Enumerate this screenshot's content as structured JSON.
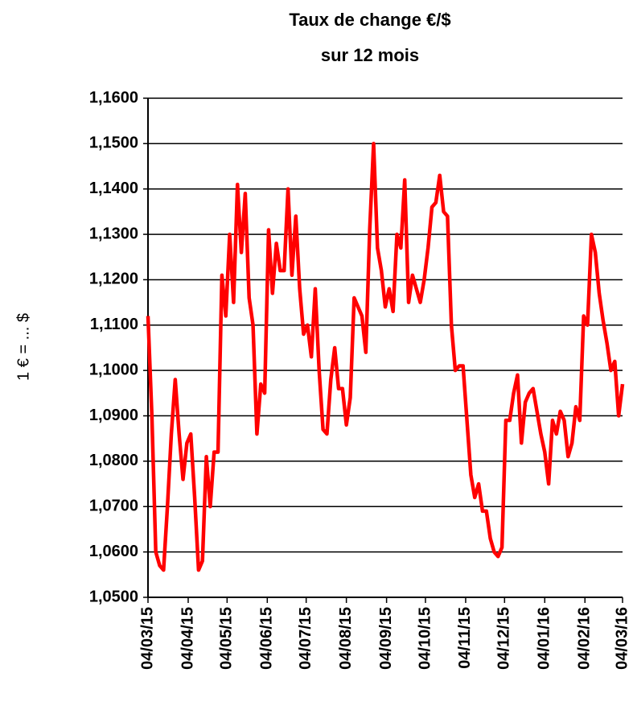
{
  "chart_data": {
    "type": "line",
    "title": "Taux de change €/$",
    "subtitle": "sur 12 mois",
    "y_label": "1 € = ... $",
    "x": [
      "2015-03-04",
      "2015-03-07",
      "2015-03-10",
      "2015-03-13",
      "2015-03-16",
      "2015-03-19",
      "2015-03-22",
      "2015-03-25",
      "2015-03-28",
      "2015-03-31",
      "2015-04-03",
      "2015-04-06",
      "2015-04-09",
      "2015-04-12",
      "2015-04-15",
      "2015-04-18",
      "2015-04-21",
      "2015-04-24",
      "2015-04-27",
      "2015-04-30",
      "2015-05-03",
      "2015-05-06",
      "2015-05-09",
      "2015-05-12",
      "2015-05-15",
      "2015-05-18",
      "2015-05-21",
      "2015-05-24",
      "2015-05-27",
      "2015-05-30",
      "2015-06-02",
      "2015-06-05",
      "2015-06-08",
      "2015-06-11",
      "2015-06-14",
      "2015-06-17",
      "2015-06-20",
      "2015-06-23",
      "2015-06-26",
      "2015-06-29",
      "2015-07-02",
      "2015-07-05",
      "2015-07-08",
      "2015-07-11",
      "2015-07-14",
      "2015-07-17",
      "2015-07-20",
      "2015-07-23",
      "2015-07-26",
      "2015-07-29",
      "2015-08-01",
      "2015-08-04",
      "2015-08-07",
      "2015-08-10",
      "2015-08-13",
      "2015-08-16",
      "2015-08-19",
      "2015-08-22",
      "2015-08-25",
      "2015-08-28",
      "2015-08-31",
      "2015-09-03",
      "2015-09-06",
      "2015-09-09",
      "2015-09-12",
      "2015-09-15",
      "2015-09-18",
      "2015-09-21",
      "2015-09-24",
      "2015-09-27",
      "2015-09-30",
      "2015-10-03",
      "2015-10-06",
      "2015-10-09",
      "2015-10-12",
      "2015-10-15",
      "2015-10-18",
      "2015-10-21",
      "2015-10-24",
      "2015-10-27",
      "2015-10-30",
      "2015-11-02",
      "2015-11-05",
      "2015-11-08",
      "2015-11-11",
      "2015-11-14",
      "2015-11-17",
      "2015-11-20",
      "2015-11-23",
      "2015-11-26",
      "2015-11-29",
      "2015-12-02",
      "2015-12-05",
      "2015-12-08",
      "2015-12-11",
      "2015-12-14",
      "2015-12-17",
      "2015-12-20",
      "2015-12-23",
      "2015-12-26",
      "2015-12-29",
      "2016-01-01",
      "2016-01-04",
      "2016-01-07",
      "2016-01-10",
      "2016-01-13",
      "2016-01-16",
      "2016-01-19",
      "2016-01-22",
      "2016-01-25",
      "2016-01-28",
      "2016-01-31",
      "2016-02-03",
      "2016-02-06",
      "2016-02-09",
      "2016-02-12",
      "2016-02-15",
      "2016-02-18",
      "2016-02-21",
      "2016-02-24",
      "2016-02-27",
      "2016-03-01",
      "2016-03-04"
    ],
    "series": [
      {
        "name": "€/$",
        "color": "#ff0000",
        "values": [
          1.112,
          1.09,
          1.06,
          1.057,
          1.056,
          1.07,
          1.086,
          1.098,
          1.086,
          1.076,
          1.084,
          1.086,
          1.072,
          1.056,
          1.058,
          1.081,
          1.07,
          1.082,
          1.082,
          1.121,
          1.112,
          1.13,
          1.115,
          1.141,
          1.126,
          1.139,
          1.116,
          1.11,
          1.086,
          1.097,
          1.095,
          1.131,
          1.117,
          1.128,
          1.122,
          1.122,
          1.14,
          1.121,
          1.134,
          1.118,
          1.108,
          1.11,
          1.103,
          1.118,
          1.1,
          1.087,
          1.086,
          1.098,
          1.105,
          1.096,
          1.096,
          1.088,
          1.094,
          1.116,
          1.114,
          1.112,
          1.104,
          1.131,
          1.15,
          1.127,
          1.122,
          1.114,
          1.118,
          1.113,
          1.13,
          1.127,
          1.142,
          1.115,
          1.121,
          1.118,
          1.115,
          1.12,
          1.127,
          1.136,
          1.137,
          1.143,
          1.135,
          1.134,
          1.11,
          1.1,
          1.101,
          1.101,
          1.089,
          1.077,
          1.072,
          1.075,
          1.069,
          1.069,
          1.063,
          1.06,
          1.059,
          1.061,
          1.089,
          1.089,
          1.095,
          1.099,
          1.084,
          1.093,
          1.095,
          1.096,
          1.091,
          1.086,
          1.082,
          1.075,
          1.089,
          1.086,
          1.091,
          1.089,
          1.081,
          1.084,
          1.092,
          1.089,
          1.112,
          1.11,
          1.13,
          1.126,
          1.117,
          1.111,
          1.106,
          1.1,
          1.102,
          1.09,
          1.097
        ]
      }
    ],
    "xlim": [
      "2015-03-04",
      "2016-03-04"
    ],
    "xticks": [
      {
        "value": "2015-03-04",
        "label": "04/03/15"
      },
      {
        "value": "2015-04-04",
        "label": "04/04/15"
      },
      {
        "value": "2015-05-04",
        "label": "04/05/15"
      },
      {
        "value": "2015-06-04",
        "label": "04/06/15"
      },
      {
        "value": "2015-07-04",
        "label": "04/07/15"
      },
      {
        "value": "2015-08-04",
        "label": "04/08/15"
      },
      {
        "value": "2015-09-04",
        "label": "04/09/15"
      },
      {
        "value": "2015-10-04",
        "label": "04/10/15"
      },
      {
        "value": "2015-11-04",
        "label": "04/11/15"
      },
      {
        "value": "2015-12-04",
        "label": "04/12/15"
      },
      {
        "value": "2016-01-04",
        "label": "04/01/16"
      },
      {
        "value": "2016-02-04",
        "label": "04/02/16"
      },
      {
        "value": "2016-03-04",
        "label": "04/03/16"
      }
    ],
    "ylim": [
      1.05,
      1.16
    ],
    "yticks": [
      {
        "value": 1.05,
        "label": "1,0500"
      },
      {
        "value": 1.06,
        "label": "1,0600"
      },
      {
        "value": 1.07,
        "label": "1,0700"
      },
      {
        "value": 1.08,
        "label": "1,0800"
      },
      {
        "value": 1.09,
        "label": "1,0900"
      },
      {
        "value": 1.1,
        "label": "1,1000"
      },
      {
        "value": 1.11,
        "label": "1,1100"
      },
      {
        "value": 1.12,
        "label": "1,1200"
      },
      {
        "value": 1.13,
        "label": "1,1300"
      },
      {
        "value": 1.14,
        "label": "1,1400"
      },
      {
        "value": 1.15,
        "label": "1,1500"
      },
      {
        "value": 1.16,
        "label": "1,1600"
      }
    ],
    "grid": true
  }
}
